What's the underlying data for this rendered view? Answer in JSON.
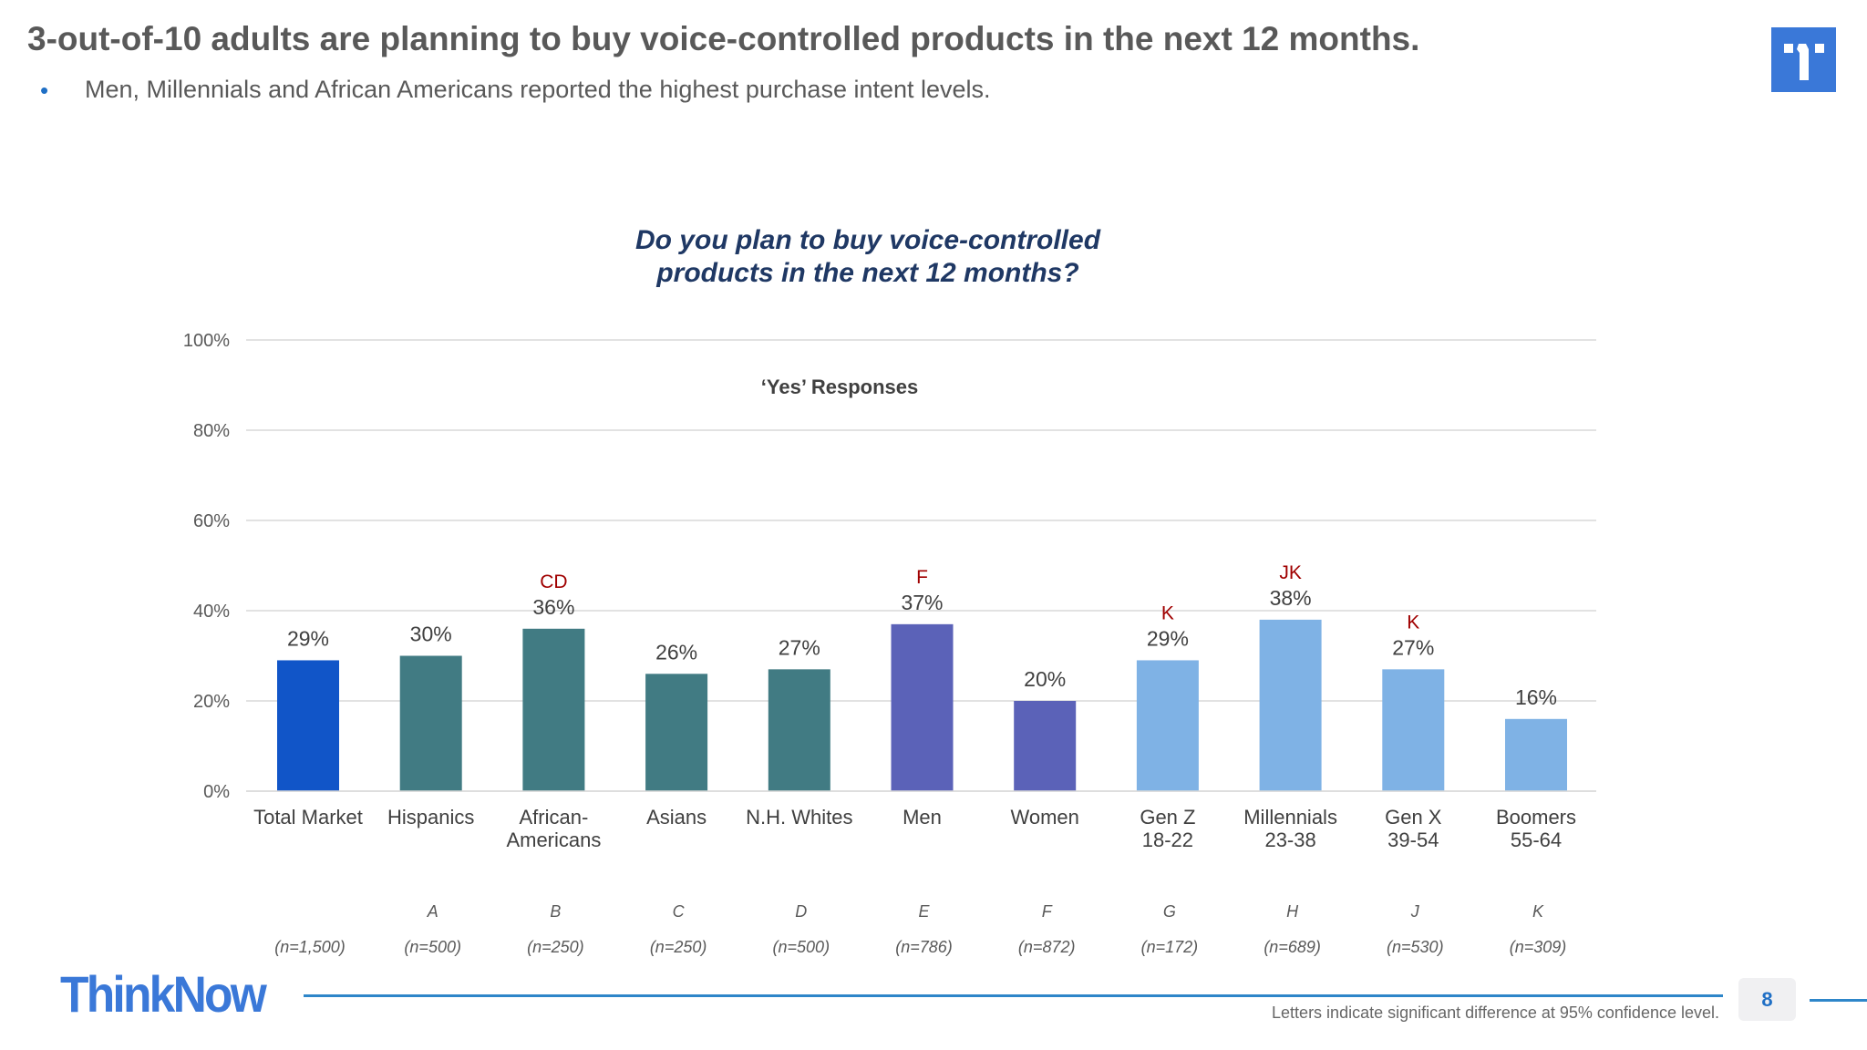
{
  "header": {
    "title": "3-out-of-10 adults are planning to buy voice-controlled products in the next 12 months.",
    "bullet": "•",
    "subtitle": "Men, Millennials and African Americans reported the highest purchase intent levels."
  },
  "logo_icon": "thinknow-t-logo",
  "chart_data": {
    "type": "bar",
    "title_lines": [
      "Do you plan to buy voice-controlled",
      "products in the next 12 months?"
    ],
    "annotation": "‘Yes’ Responses",
    "ylim": [
      0,
      100
    ],
    "yticks": [
      "0%",
      "20%",
      "40%",
      "60%",
      "80%",
      "100%"
    ],
    "grid": true,
    "categories": [
      {
        "label": [
          "Total Market"
        ],
        "letter": "",
        "n": "(n=1,500)",
        "value": 29,
        "value_label": "29%",
        "sig": "",
        "color": "#1155c8"
      },
      {
        "label": [
          "Hispanics"
        ],
        "letter": "A",
        "n": "(n=500)",
        "value": 30,
        "value_label": "30%",
        "sig": "",
        "color": "#417b83"
      },
      {
        "label": [
          "African-",
          "Americans"
        ],
        "letter": "B",
        "n": "(n=250)",
        "value": 36,
        "value_label": "36%",
        "sig": "CD",
        "color": "#417b83"
      },
      {
        "label": [
          "Asians"
        ],
        "letter": "C",
        "n": "(n=250)",
        "value": 26,
        "value_label": "26%",
        "sig": "",
        "color": "#417b83"
      },
      {
        "label": [
          "N.H. Whites"
        ],
        "letter": "D",
        "n": "(n=500)",
        "value": 27,
        "value_label": "27%",
        "sig": "",
        "color": "#417b83"
      },
      {
        "label": [
          "Men"
        ],
        "letter": "E",
        "n": "(n=786)",
        "value": 37,
        "value_label": "37%",
        "sig": "F",
        "color": "#5b62b8"
      },
      {
        "label": [
          "Women"
        ],
        "letter": "F",
        "n": "(n=872)",
        "value": 20,
        "value_label": "20%",
        "sig": "",
        "color": "#5b62b8"
      },
      {
        "label": [
          "Gen Z",
          "18-22"
        ],
        "letter": "G",
        "n": "(n=172)",
        "value": 29,
        "value_label": "29%",
        "sig": "K",
        "color": "#7fb2e5"
      },
      {
        "label": [
          "Millennials",
          "23-38"
        ],
        "letter": "H",
        "n": "(n=689)",
        "value": 38,
        "value_label": "38%",
        "sig": "JK",
        "color": "#7fb2e5"
      },
      {
        "label": [
          "Gen X",
          "39-54"
        ],
        "letter": "J",
        "n": "(n=530)",
        "value": 27,
        "value_label": "27%",
        "sig": "K",
        "color": "#7fb2e5"
      },
      {
        "label": [
          "Boomers",
          "55-64"
        ],
        "letter": "K",
        "n": "(n=309)",
        "value": 16,
        "value_label": "16%",
        "sig": "",
        "color": "#7fb2e5"
      }
    ],
    "sig_color": "#a00000"
  },
  "footer": {
    "brand": "ThinkNow",
    "page_number": "8",
    "note": "Letters indicate significant difference at 95% confidence level."
  }
}
